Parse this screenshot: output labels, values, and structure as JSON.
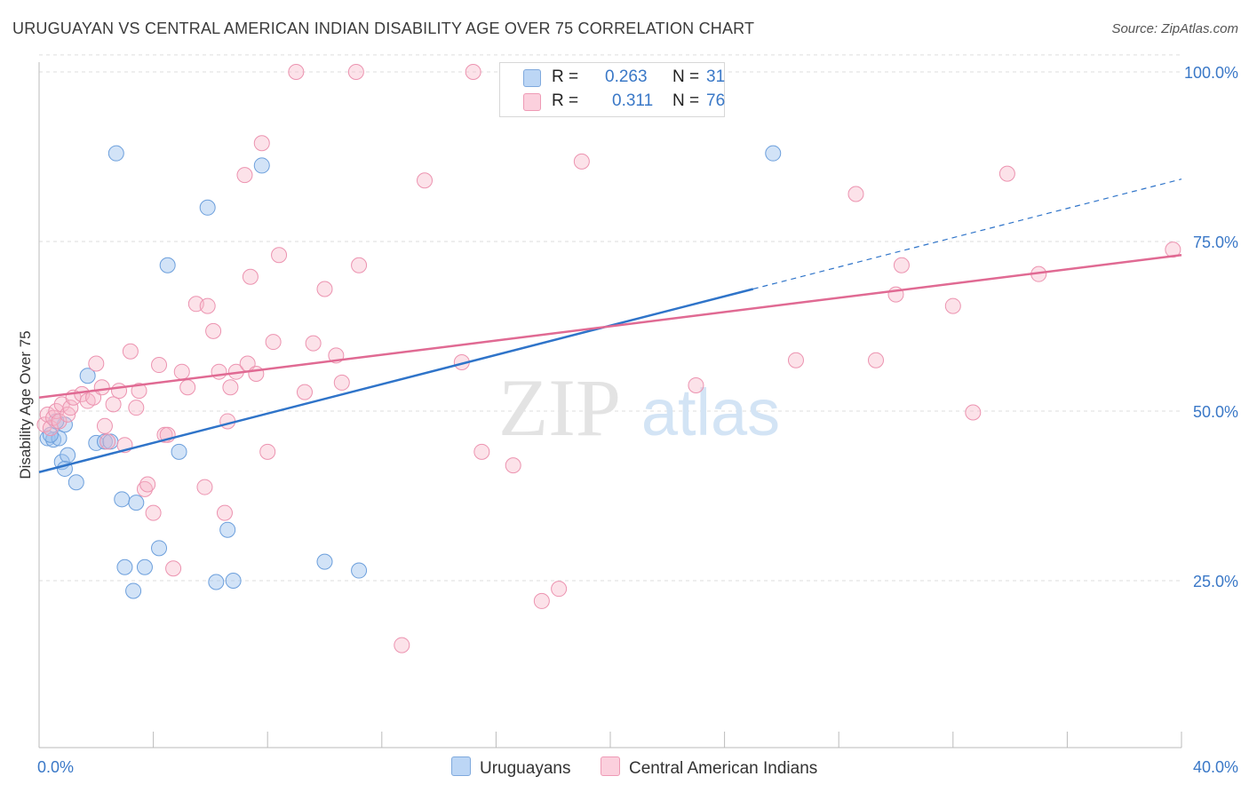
{
  "title": "URUGUAYAN VS CENTRAL AMERICAN INDIAN DISABILITY AGE OVER 75 CORRELATION CHART",
  "source": "Source: ZipAtlas.com",
  "watermark": {
    "zip": "ZIP",
    "atlas": "atlas"
  },
  "legend": {
    "r_label": "R =",
    "n_label": "N =",
    "series": [
      {
        "name": "Uruguayans",
        "r": "0.263",
        "n": "31",
        "color": "#9cc2ee",
        "line_color": "#2f74c9"
      },
      {
        "name": "Central American Indians",
        "r": "0.311",
        "n": "76",
        "color": "#f7b6c9",
        "line_color": "#e06a93"
      }
    ]
  },
  "chart_data": {
    "type": "scatter",
    "title": "URUGUAYAN VS CENTRAL AMERICAN INDIAN DISABILITY AGE OVER 75 CORRELATION CHART",
    "xlabel": "",
    "ylabel": "Disability Age Over 75",
    "xlim": [
      0,
      40
    ],
    "ylim": [
      5,
      102
    ],
    "x_tick_labels": [
      "0.0%",
      "40.0%"
    ],
    "y_ticks": [
      25,
      50,
      75,
      100
    ],
    "y_tick_labels": [
      "25.0%",
      "50.0%",
      "75.0%",
      "100.0%"
    ],
    "grid": true,
    "series": [
      {
        "name": "Uruguayans",
        "points": [
          [
            0.3,
            46.0
          ],
          [
            0.5,
            45.8
          ],
          [
            0.7,
            46.0
          ],
          [
            0.9,
            48.0
          ],
          [
            0.8,
            42.5
          ],
          [
            1.0,
            43.5
          ],
          [
            0.9,
            41.5
          ],
          [
            1.3,
            39.5
          ],
          [
            1.7,
            55.2
          ],
          [
            2.0,
            45.3
          ],
          [
            2.3,
            45.5
          ],
          [
            2.5,
            45.5
          ],
          [
            2.7,
            88.0
          ],
          [
            2.9,
            37.0
          ],
          [
            3.0,
            27.0
          ],
          [
            3.3,
            23.5
          ],
          [
            3.4,
            36.5
          ],
          [
            3.7,
            27.0
          ],
          [
            4.2,
            29.8
          ],
          [
            4.5,
            71.5
          ],
          [
            4.9,
            44.0
          ],
          [
            5.9,
            80.0
          ],
          [
            6.2,
            24.8
          ],
          [
            6.6,
            32.5
          ],
          [
            6.8,
            25.0
          ],
          [
            7.8,
            86.2
          ],
          [
            10.0,
            27.8
          ],
          [
            11.2,
            26.5
          ],
          [
            25.7,
            88.0
          ],
          [
            0.4,
            46.5
          ],
          [
            0.6,
            48.5
          ]
        ],
        "trend": {
          "x": [
            0,
            25,
            40
          ],
          "y": [
            41.0,
            68.0,
            84.2
          ]
        }
      },
      {
        "name": "Central American Indians",
        "points": [
          [
            0.2,
            48.0
          ],
          [
            0.3,
            49.5
          ],
          [
            0.4,
            47.5
          ],
          [
            0.5,
            49.0
          ],
          [
            0.6,
            50.0
          ],
          [
            0.7,
            48.5
          ],
          [
            0.8,
            51.0
          ],
          [
            1.0,
            49.5
          ],
          [
            1.1,
            50.5
          ],
          [
            1.2,
            52.0
          ],
          [
            1.5,
            52.5
          ],
          [
            1.7,
            51.5
          ],
          [
            1.9,
            52.0
          ],
          [
            2.0,
            57.0
          ],
          [
            2.2,
            53.5
          ],
          [
            2.3,
            47.8
          ],
          [
            2.4,
            45.5
          ],
          [
            2.6,
            51.0
          ],
          [
            2.8,
            53.0
          ],
          [
            3.0,
            45.0
          ],
          [
            3.2,
            58.8
          ],
          [
            3.4,
            50.5
          ],
          [
            3.5,
            53.0
          ],
          [
            3.7,
            38.5
          ],
          [
            3.8,
            39.2
          ],
          [
            4.0,
            35.0
          ],
          [
            4.2,
            56.8
          ],
          [
            4.4,
            46.5
          ],
          [
            4.5,
            46.5
          ],
          [
            4.7,
            26.8
          ],
          [
            5.0,
            55.8
          ],
          [
            5.2,
            53.5
          ],
          [
            5.5,
            65.8
          ],
          [
            5.8,
            38.8
          ],
          [
            5.9,
            65.5
          ],
          [
            6.1,
            61.8
          ],
          [
            6.3,
            55.8
          ],
          [
            6.5,
            35.0
          ],
          [
            6.6,
            48.5
          ],
          [
            6.7,
            53.5
          ],
          [
            6.9,
            55.8
          ],
          [
            7.2,
            84.8
          ],
          [
            7.3,
            57.0
          ],
          [
            7.4,
            69.8
          ],
          [
            7.6,
            55.5
          ],
          [
            7.8,
            89.5
          ],
          [
            8.0,
            44.0
          ],
          [
            8.2,
            60.2
          ],
          [
            8.4,
            73.0
          ],
          [
            9.0,
            100.0
          ],
          [
            9.3,
            52.8
          ],
          [
            9.6,
            60.0
          ],
          [
            10.0,
            68.0
          ],
          [
            10.4,
            58.2
          ],
          [
            10.6,
            54.2
          ],
          [
            11.1,
            100.0
          ],
          [
            11.2,
            71.5
          ],
          [
            12.7,
            15.5
          ],
          [
            13.5,
            84.0
          ],
          [
            14.8,
            57.2
          ],
          [
            15.2,
            100.0
          ],
          [
            15.5,
            44.0
          ],
          [
            16.6,
            42.0
          ],
          [
            17.6,
            22.0
          ],
          [
            18.2,
            23.8
          ],
          [
            19.0,
            86.8
          ],
          [
            23.0,
            53.8
          ],
          [
            26.5,
            57.5
          ],
          [
            28.6,
            82.0
          ],
          [
            29.3,
            57.5
          ],
          [
            30.0,
            67.2
          ],
          [
            30.2,
            71.5
          ],
          [
            32.0,
            65.5
          ],
          [
            32.7,
            49.8
          ],
          [
            33.9,
            85.0
          ],
          [
            35.0,
            70.2
          ]
        ],
        "trend": {
          "x": [
            0,
            40
          ],
          "y": [
            52.0,
            73.0
          ]
        }
      }
    ],
    "extra_points": [
      {
        "series": "Central American Indians",
        "x": [
          39.7
        ],
        "y": [
          73.8
        ]
      }
    ]
  }
}
